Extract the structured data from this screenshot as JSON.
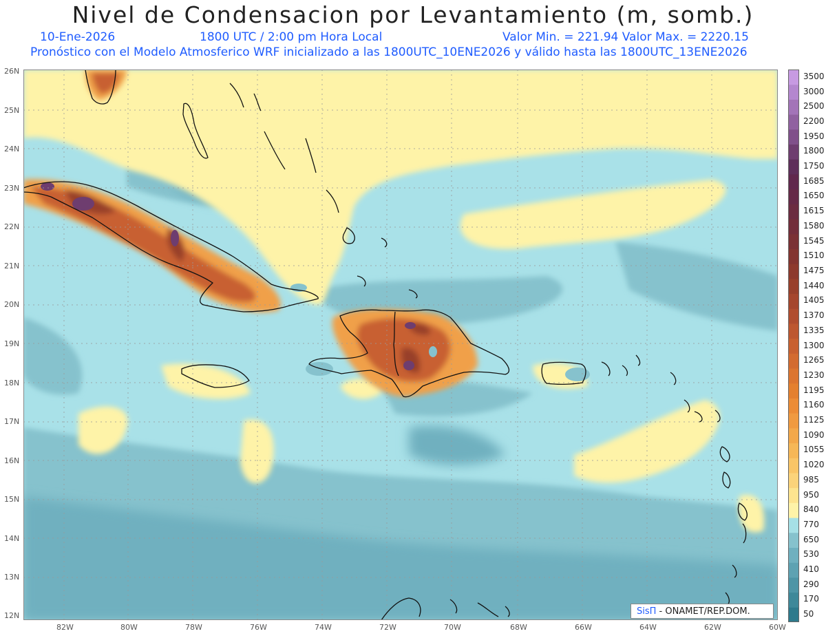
{
  "title": "Nivel de Condensacion por Levantamiento (m, somb.)",
  "date": "10-Ene-2026",
  "time": "1800 UTC / 2:00 pm Hora Local",
  "minmax": "Valor Min. = 221.94  Valor Max. = 2220.15",
  "forecast": "Pronóstico con el Modelo Atmosferico WRF inicializado a las 1800UTC_10ENE2026 y válido hasta las  1800UTC_13ENE2026",
  "credit_sis": "SisΠ",
  "credit_rest": " - ONAMET/REP.DOM.",
  "lat_labels": [
    "26N",
    "25N",
    "24N",
    "23N",
    "22N",
    "21N",
    "20N",
    "19N",
    "18N",
    "17N",
    "16N",
    "15N",
    "14N",
    "13N",
    "12N"
  ],
  "lon_labels": [
    "82W",
    "80W",
    "78W",
    "76W",
    "74W",
    "72W",
    "70W",
    "68W",
    "66W",
    "64W",
    "62W",
    "60W"
  ],
  "colorbar": {
    "levels": [
      "50",
      "170",
      "290",
      "410",
      "530",
      "650",
      "770",
      "840",
      "950",
      "985",
      "1020",
      "1055",
      "1090",
      "1125",
      "1160",
      "1195",
      "1230",
      "1265",
      "1300",
      "1335",
      "1370",
      "1405",
      "1440",
      "1475",
      "1510",
      "1545",
      "1580",
      "1615",
      "1650",
      "1685",
      "1750",
      "1800",
      "1950",
      "2200",
      "2500",
      "3000",
      "3500"
    ],
    "colors": [
      "#2e7a8c",
      "#3e8899",
      "#4e95a6",
      "#5ea2b2",
      "#6fb0bf",
      "#86c2cd",
      "#a6e0e6",
      "#fef3a8",
      "#fde48f",
      "#fbd37a",
      "#f9c567",
      "#f6b757",
      "#f3a84a",
      "#f09a40",
      "#ec8c36",
      "#e4802f",
      "#dc7530",
      "#d36b30",
      "#c86030",
      "#bd5730",
      "#b04d2f",
      "#a5462d",
      "#98402b",
      "#8d3a2d",
      "#833530",
      "#7a3134",
      "#722e3a",
      "#6b2c40",
      "#652a47",
      "#60284d",
      "#5e2f5a",
      "#6e3d6f",
      "#80508a",
      "#9061a0",
      "#a374b8",
      "#b487cf",
      "#c79ae2"
    ]
  }
}
